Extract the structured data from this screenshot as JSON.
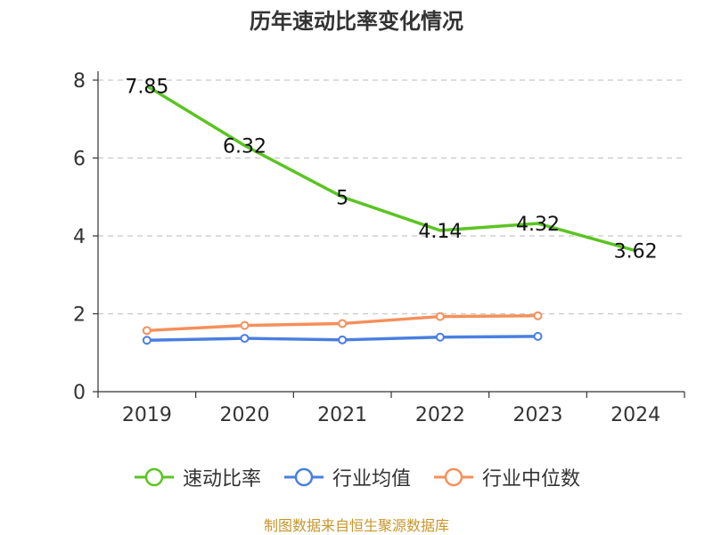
{
  "title": "历年速动比率变化情况",
  "source": "制图数据来自恒生聚源数据库",
  "chart_data": {
    "type": "line",
    "title": "历年速动比率变化情况",
    "categories": [
      "2019",
      "2020",
      "2021",
      "2022",
      "2023",
      "2024"
    ],
    "ylim": [
      0,
      8
    ],
    "yticks": [
      0,
      2,
      4,
      6,
      8
    ],
    "grid": true,
    "legend_position": "bottom",
    "series": [
      {
        "name": "速动比率",
        "color": "#5bc422",
        "values": [
          7.85,
          6.32,
          5,
          4.14,
          4.32,
          3.62
        ],
        "labels": [
          "7.85",
          "6.32",
          "5",
          "4.14",
          "4.32",
          "3.62"
        ]
      },
      {
        "name": "行业均值",
        "color": "#4a7fe0",
        "values": [
          1.32,
          1.37,
          1.33,
          1.4,
          1.42,
          null
        ]
      },
      {
        "name": "行业中位数",
        "color": "#f4905a",
        "values": [
          1.57,
          1.7,
          1.75,
          1.93,
          1.95,
          null
        ]
      }
    ]
  }
}
